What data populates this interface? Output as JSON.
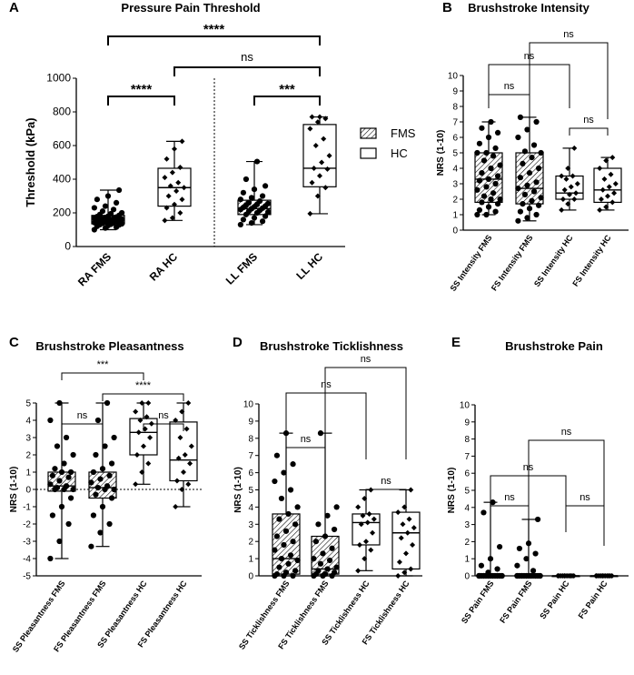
{
  "chart_data": [
    {
      "panel": "A",
      "type": "box",
      "title": "Pressure Pain Threshold",
      "ylabel": "Threshold (kPa)",
      "ylim": [
        0,
        1000
      ],
      "yticks": [
        0,
        200,
        400,
        600,
        800,
        1000
      ],
      "categories": [
        "RA FMS",
        "RA HC",
        "LL FMS",
        "LL HC"
      ],
      "separator_after": 1,
      "legend": [
        {
          "label": "FMS",
          "pattern": "hatched"
        },
        {
          "label": "HC",
          "pattern": "open"
        }
      ],
      "boxes": [
        {
          "category": "RA FMS",
          "min": 100,
          "q1": 135,
          "median": 160,
          "q3": 185,
          "max": 335,
          "fill": "hatched"
        },
        {
          "category": "RA HC",
          "min": 155,
          "q1": 240,
          "median": 350,
          "q3": 465,
          "max": 625,
          "fill": "open"
        },
        {
          "category": "LL FMS",
          "min": 130,
          "q1": 190,
          "median": 225,
          "q3": 275,
          "max": 505,
          "fill": "hatched"
        },
        {
          "category": "LL HC",
          "min": 195,
          "q1": 355,
          "median": 465,
          "q3": 725,
          "max": 770,
          "fill": "open"
        }
      ],
      "points": [
        [
          100,
          110,
          115,
          120,
          125,
          128,
          130,
          132,
          135,
          138,
          140,
          142,
          145,
          148,
          150,
          152,
          155,
          158,
          160,
          162,
          165,
          168,
          170,
          172,
          175,
          178,
          180,
          185,
          190,
          195,
          200,
          210,
          220,
          230,
          240,
          260,
          280,
          300,
          335
        ],
        [
          155,
          170,
          200,
          230,
          250,
          280,
          300,
          330,
          350,
          360,
          380,
          410,
          440,
          470,
          520,
          580,
          625
        ],
        [
          130,
          140,
          150,
          160,
          170,
          180,
          190,
          200,
          205,
          210,
          215,
          220,
          225,
          228,
          232,
          236,
          240,
          245,
          250,
          255,
          260,
          270,
          280,
          290,
          300,
          320,
          340,
          360,
          400,
          505
        ],
        [
          195,
          300,
          350,
          380,
          420,
          460,
          465,
          500,
          540,
          600,
          640,
          700,
          740,
          760,
          770,
          770
        ]
      ],
      "comparisons": [
        {
          "from": "RA FMS",
          "to": "LL HC",
          "label": "****"
        },
        {
          "from": "RA HC",
          "to": "LL HC",
          "label": "ns"
        },
        {
          "from": "RA FMS",
          "to": "RA HC",
          "label": "****"
        },
        {
          "from": "LL FMS",
          "to": "LL HC",
          "label": "***"
        }
      ]
    },
    {
      "panel": "B",
      "type": "box",
      "title": "Brushstroke Intensity",
      "ylabel": "NRS (1-10)",
      "ylim": [
        0,
        10
      ],
      "yticks": [
        0,
        1,
        2,
        3,
        4,
        5,
        6,
        7,
        8,
        9,
        10
      ],
      "categories": [
        "SS Intensity FMS",
        "FS Intensity FMS",
        "SS Intensity HC",
        "FS Intensity HC"
      ],
      "boxes": [
        {
          "category": "SS Intensity FMS",
          "min": 1.0,
          "q1": 1.8,
          "median": 3.3,
          "q3": 5.0,
          "max": 7.0,
          "fill": "hatched"
        },
        {
          "category": "FS Intensity FMS",
          "min": 0.6,
          "q1": 1.7,
          "median": 2.7,
          "q3": 5.0,
          "max": 7.3,
          "fill": "hatched"
        },
        {
          "category": "SS Intensity HC",
          "min": 1.3,
          "q1": 2.0,
          "median": 2.4,
          "q3": 3.5,
          "max": 5.3,
          "fill": "open"
        },
        {
          "category": "FS Intensity HC",
          "min": 1.3,
          "q1": 1.8,
          "median": 2.6,
          "q3": 4.0,
          "max": 4.7,
          "fill": "open"
        }
      ],
      "points": [
        [
          1.0,
          1.0,
          1.2,
          1.3,
          1.5,
          1.7,
          1.8,
          2.0,
          2.0,
          2.2,
          2.4,
          2.6,
          2.8,
          3.0,
          3.2,
          3.3,
          3.5,
          3.7,
          4.0,
          4.2,
          4.5,
          4.8,
          5.0,
          5.0,
          5.3,
          5.6,
          6.0,
          6.3,
          6.6,
          7.0
        ],
        [
          0.6,
          0.8,
          1.0,
          1.2,
          1.4,
          1.6,
          1.7,
          1.9,
          2.1,
          2.3,
          2.5,
          2.7,
          2.9,
          3.1,
          3.4,
          3.7,
          4.0,
          4.3,
          4.7,
          5.0,
          5.1,
          5.5,
          6.0,
          6.5,
          7.0,
          7.3
        ],
        [
          1.3,
          1.7,
          2.0,
          2.0,
          2.3,
          2.4,
          2.6,
          2.8,
          3.0,
          3.3,
          3.5,
          3.5,
          4.0,
          5.3
        ],
        [
          1.3,
          1.5,
          1.8,
          2.0,
          2.2,
          2.4,
          2.6,
          2.8,
          3.0,
          3.3,
          3.6,
          4.0,
          4.5,
          4.7
        ]
      ],
      "comparisons": [
        {
          "from": "FS Intensity FMS",
          "to": "FS Intensity HC",
          "label": "ns"
        },
        {
          "from": "SS Intensity FMS",
          "to": "SS Intensity HC",
          "label": "ns"
        },
        {
          "from": "SS Intensity FMS",
          "to": "FS Intensity FMS",
          "label": "ns"
        },
        {
          "from": "SS Intensity HC",
          "to": "FS Intensity HC",
          "label": "ns"
        }
      ]
    },
    {
      "panel": "C",
      "type": "box",
      "title": "Brushstroke Pleasantness",
      "ylabel": "NRS (1-10)",
      "ylim": [
        -5,
        5
      ],
      "yticks": [
        -5,
        -4,
        -3,
        -2,
        -1,
        0,
        1,
        2,
        3,
        4,
        5
      ],
      "zero_line": true,
      "categories": [
        "SS Pleasantness FMS",
        "FS Pleasantness FMS",
        "SS Pleasantness HC",
        "FS Pleasantness HC"
      ],
      "boxes": [
        {
          "category": "SS Pleasantness FMS",
          "min": -4.0,
          "q1": -0.1,
          "median": 0.2,
          "q3": 1.0,
          "max": 5.0,
          "fill": "hatched"
        },
        {
          "category": "FS Pleasantness FMS",
          "min": -3.3,
          "q1": -0.5,
          "median": 0.1,
          "q3": 1.0,
          "max": 5.0,
          "fill": "hatched"
        },
        {
          "category": "SS Pleasantness HC",
          "min": 0.3,
          "q1": 2.0,
          "median": 3.3,
          "q3": 4.1,
          "max": 5.0,
          "fill": "open"
        },
        {
          "category": "FS Pleasantness HC",
          "min": -1.0,
          "q1": 0.5,
          "median": 1.7,
          "q3": 3.9,
          "max": 5.0,
          "fill": "open"
        }
      ],
      "points": [
        [
          -4.0,
          -3.0,
          -2.0,
          -1.5,
          -1.0,
          -0.5,
          0.0,
          0.0,
          0.0,
          0.1,
          0.2,
          0.3,
          0.5,
          0.7,
          0.8,
          1.0,
          1.0,
          1.2,
          1.5,
          2.0,
          2.5,
          3.0,
          4.0,
          5.0
        ],
        [
          -3.3,
          -2.5,
          -2.0,
          -1.5,
          -1.0,
          -0.5,
          -0.3,
          0.0,
          0.0,
          0.1,
          0.2,
          0.4,
          0.6,
          0.8,
          1.0,
          1.2,
          1.5,
          2.0,
          2.5,
          3.0,
          4.0,
          5.0
        ],
        [
          0.3,
          1.0,
          1.5,
          2.0,
          2.5,
          3.0,
          3.3,
          3.5,
          3.8,
          4.0,
          4.2,
          4.5,
          5.0,
          5.0
        ],
        [
          -1.0,
          0.0,
          0.3,
          0.5,
          1.0,
          1.5,
          1.8,
          2.0,
          2.5,
          3.0,
          3.5,
          4.0,
          4.5,
          5.0
        ]
      ],
      "comparisons": [
        {
          "from": "SS Pleasantness FMS",
          "to": "SS Pleasantness HC",
          "label": "***"
        },
        {
          "from": "FS Pleasantness FMS",
          "to": "FS Pleasantness HC",
          "label": "****"
        },
        {
          "from": "SS Pleasantness FMS",
          "to": "FS Pleasantness FMS",
          "label": "ns"
        },
        {
          "from": "SS Pleasantness HC",
          "to": "FS Pleasantness HC",
          "label": "ns"
        }
      ]
    },
    {
      "panel": "D",
      "type": "box",
      "title": "Brushstroke Ticklishness",
      "ylabel": "NRS (1-10)",
      "ylim": [
        0,
        10
      ],
      "yticks": [
        0,
        1,
        2,
        3,
        4,
        5,
        6,
        7,
        8,
        9,
        10
      ],
      "categories": [
        "SS Ticklishness FMS",
        "FS Ticklishness FMS",
        "SS Ticklishness HC",
        "FS Ticklishness HC"
      ],
      "boxes": [
        {
          "category": "SS Ticklishness FMS",
          "min": 0.0,
          "q1": 0.1,
          "median": 1.0,
          "q3": 3.6,
          "max": 8.3,
          "fill": "hatched"
        },
        {
          "category": "FS Ticklishness FMS",
          "min": 0.0,
          "q1": 0.1,
          "median": 0.4,
          "q3": 2.3,
          "max": 8.3,
          "fill": "hatched"
        },
        {
          "category": "SS Ticklishness HC",
          "min": 0.3,
          "q1": 1.8,
          "median": 3.1,
          "q3": 3.6,
          "max": 5.0,
          "fill": "open"
        },
        {
          "category": "FS Ticklishness HC",
          "min": 0.0,
          "q1": 0.4,
          "median": 2.5,
          "q3": 3.7,
          "max": 5.0,
          "fill": "open"
        }
      ],
      "points": [
        [
          0.0,
          0.0,
          0.0,
          0.1,
          0.2,
          0.3,
          0.5,
          0.7,
          0.9,
          1.0,
          1.2,
          1.5,
          1.8,
          2.0,
          2.3,
          2.6,
          3.0,
          3.3,
          3.6,
          4.0,
          4.5,
          5.0,
          5.5,
          6.0,
          6.5,
          7.0,
          8.3
        ],
        [
          0.0,
          0.0,
          0.0,
          0.1,
          0.1,
          0.2,
          0.3,
          0.4,
          0.5,
          0.7,
          0.9,
          1.0,
          1.3,
          1.6,
          2.0,
          2.3,
          2.7,
          3.0,
          3.5,
          4.0,
          8.3
        ],
        [
          0.3,
          1.0,
          1.5,
          1.8,
          2.0,
          2.5,
          3.0,
          3.1,
          3.3,
          3.5,
          3.6,
          4.0,
          4.5,
          5.0
        ],
        [
          0.0,
          0.2,
          0.4,
          0.8,
          1.3,
          1.8,
          2.2,
          2.5,
          2.8,
          3.0,
          3.3,
          3.7,
          4.0,
          5.0
        ]
      ],
      "comparisons": [
        {
          "from": "FS Ticklishness FMS",
          "to": "FS Ticklishness HC",
          "label": "ns"
        },
        {
          "from": "SS Ticklishness FMS",
          "to": "SS Ticklishness HC",
          "label": "ns"
        },
        {
          "from": "SS Ticklishness FMS",
          "to": "FS Ticklishness FMS",
          "label": "ns"
        },
        {
          "from": "SS Ticklishness HC",
          "to": "FS Ticklishness HC",
          "label": "ns"
        }
      ]
    },
    {
      "panel": "E",
      "type": "box",
      "title": "Brushstroke Pain",
      "ylabel": "NRS (1-10)",
      "ylim": [
        0,
        10
      ],
      "yticks": [
        0,
        1,
        2,
        3,
        4,
        5,
        6,
        7,
        8,
        9,
        10
      ],
      "categories": [
        "SS Pain FMS",
        "FS Pain FMS",
        "SS Pain HC",
        "FS Pain HC"
      ],
      "boxes": [
        {
          "category": "SS Pain FMS",
          "min": 0.0,
          "q1": 0.0,
          "median": 0.0,
          "q3": 0.0,
          "max": 4.3,
          "fill": "hatched"
        },
        {
          "category": "FS Pain FMS",
          "min": 0.0,
          "q1": 0.0,
          "median": 0.0,
          "q3": 0.0,
          "max": 3.3,
          "fill": "hatched"
        },
        {
          "category": "SS Pain HC",
          "min": 0.0,
          "q1": 0.0,
          "median": 0.0,
          "q3": 0.0,
          "max": 0.0,
          "fill": "open"
        },
        {
          "category": "FS Pain HC",
          "min": 0.0,
          "q1": 0.0,
          "median": 0.0,
          "q3": 0.0,
          "max": 0.0,
          "fill": "open"
        }
      ],
      "points": [
        [
          0.0,
          0.0,
          0.0,
          0.0,
          0.0,
          0.0,
          0.0,
          0.0,
          0.0,
          0.0,
          0.0,
          0.0,
          0.0,
          0.0,
          0.0,
          0.0,
          0.0,
          0.0,
          0.0,
          0.0,
          0.0,
          0.0,
          0.0,
          0.2,
          0.4,
          0.6,
          1.0,
          1.7,
          3.7,
          4.3
        ],
        [
          0.0,
          0.0,
          0.0,
          0.0,
          0.0,
          0.0,
          0.0,
          0.0,
          0.0,
          0.0,
          0.0,
          0.0,
          0.0,
          0.0,
          0.0,
          0.0,
          0.0,
          0.0,
          0.0,
          0.0,
          0.0,
          0.3,
          0.6,
          1.0,
          1.3,
          1.6,
          1.9,
          3.3
        ],
        [
          0.0,
          0.0,
          0.0,
          0.0,
          0.0,
          0.0,
          0.0,
          0.0,
          0.0,
          0.0,
          0.0,
          0.0,
          0.0,
          0.0
        ],
        [
          0.0,
          0.0,
          0.0,
          0.0,
          0.0,
          0.0,
          0.0,
          0.0,
          0.0,
          0.0,
          0.0,
          0.0,
          0.0,
          0.0
        ]
      ],
      "comparisons": [
        {
          "from": "FS Pain FMS",
          "to": "FS Pain HC",
          "label": "ns"
        },
        {
          "from": "SS Pain FMS",
          "to": "SS Pain HC",
          "label": "ns"
        },
        {
          "from": "SS Pain FMS",
          "to": "FS Pain FMS",
          "label": "ns"
        },
        {
          "from": "SS Pain HC",
          "to": "FS Pain HC",
          "label": "ns"
        }
      ]
    }
  ]
}
